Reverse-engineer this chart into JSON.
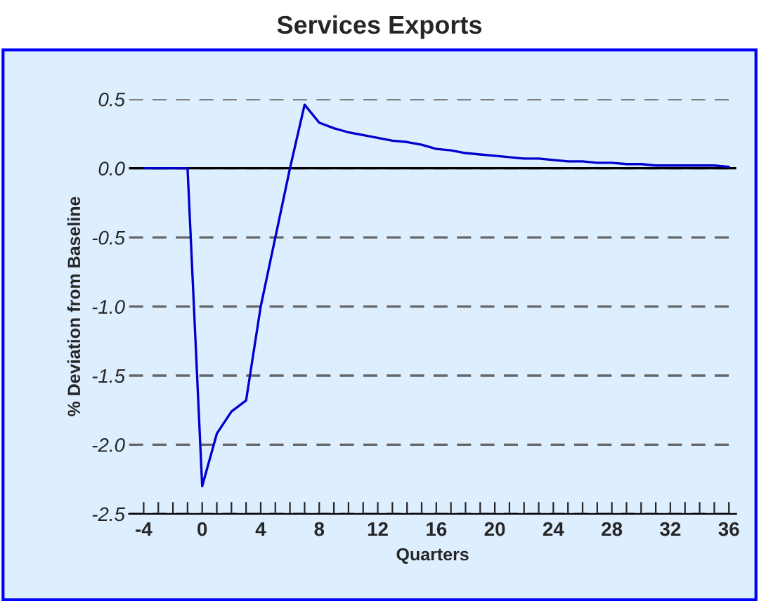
{
  "chart_data": {
    "type": "line",
    "title": "Services Exports",
    "xlabel": "Quarters",
    "ylabel": "% Deviation from Baseline",
    "x": [
      -4,
      -3,
      -2,
      -1,
      0,
      1,
      2,
      3,
      4,
      5,
      6,
      7,
      8,
      9,
      10,
      11,
      12,
      13,
      14,
      15,
      16,
      17,
      18,
      19,
      20,
      21,
      22,
      23,
      24,
      25,
      26,
      27,
      28,
      29,
      30,
      31,
      32,
      33,
      34,
      35,
      36
    ],
    "series": [
      {
        "color": "#0000cc",
        "values": [
          0,
          0,
          0,
          0,
          -2.3,
          -1.92,
          -1.76,
          -1.68,
          -1.0,
          -0.5,
          0.0,
          0.46,
          0.33,
          0.29,
          0.26,
          0.24,
          0.22,
          0.2,
          0.19,
          0.17,
          0.14,
          0.13,
          0.11,
          0.1,
          0.09,
          0.08,
          0.07,
          0.07,
          0.06,
          0.05,
          0.05,
          0.04,
          0.04,
          0.03,
          0.03,
          0.02,
          0.02,
          0.02,
          0.02,
          0.02,
          0.01
        ]
      }
    ],
    "xlim": [
      -5,
      36.5
    ],
    "ylim": [
      -2.5,
      0.5
    ],
    "xticks": [
      -4,
      {
        "value": -3,
        "label": null
      },
      {
        "value": -2,
        "label": null
      },
      {
        "value": -1,
        "label": null
      },
      0,
      {
        "value": 1,
        "label": null
      },
      {
        "value": 2,
        "label": null
      },
      {
        "value": 3,
        "label": null
      },
      4,
      {
        "value": 5,
        "label": null
      },
      {
        "value": 6,
        "label": null
      },
      {
        "value": 7,
        "label": null
      },
      8,
      {
        "value": 9,
        "label": null
      },
      {
        "value": 10,
        "label": null
      },
      {
        "value": 11,
        "label": null
      },
      12,
      {
        "value": 13,
        "label": null
      },
      {
        "value": 14,
        "label": null
      },
      {
        "value": 15,
        "label": null
      },
      16,
      {
        "value": 17,
        "label": null
      },
      {
        "value": 18,
        "label": null
      },
      {
        "value": 19,
        "label": null
      },
      20,
      {
        "value": 21,
        "label": null
      },
      {
        "value": 22,
        "label": null
      },
      {
        "value": 23,
        "label": null
      },
      24,
      {
        "value": 25,
        "label": null
      },
      {
        "value": 26,
        "label": null
      },
      {
        "value": 27,
        "label": null
      },
      28,
      {
        "value": 29,
        "label": null
      },
      {
        "value": 30,
        "label": null
      },
      {
        "value": 31,
        "label": null
      },
      32,
      {
        "value": 33,
        "label": null
      },
      {
        "value": 34,
        "label": null
      },
      {
        "value": 35,
        "label": null
      },
      36
    ],
    "yticks": [
      {
        "value": 0.5,
        "label": "0.5"
      },
      {
        "value": 0,
        "label": "0.0"
      },
      {
        "value": -0.5,
        "label": "-0.5"
      },
      {
        "value": -1,
        "label": "-1.0"
      },
      {
        "value": -1.5,
        "label": "-1.5"
      },
      {
        "value": -2,
        "label": "-2.0"
      },
      {
        "value": -2.5,
        "label": "-2.5"
      }
    ],
    "grid": "y",
    "line_style": "solid",
    "marker": "none",
    "ref_lines": [
      {
        "axis": "y",
        "value": 0,
        "color": "#000000",
        "line_style": "solid"
      }
    ]
  }
}
